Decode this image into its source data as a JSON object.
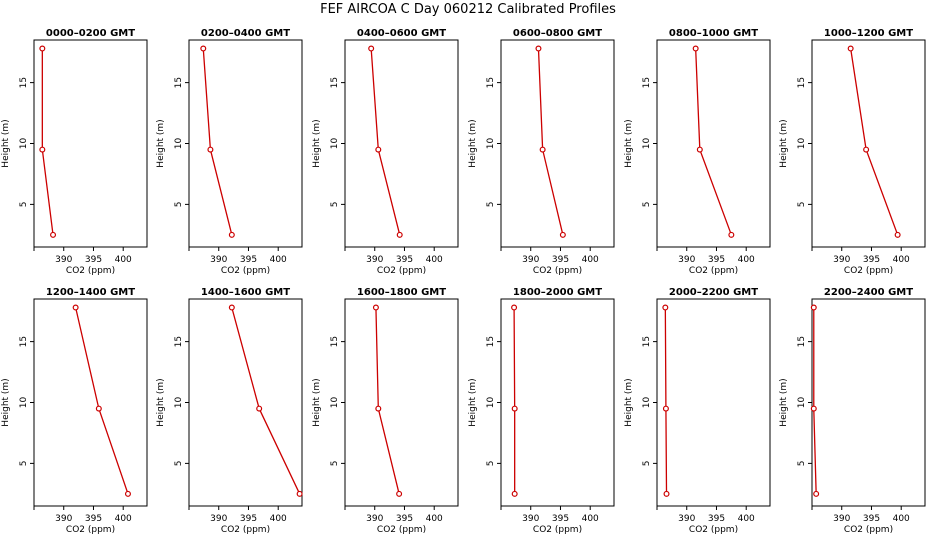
{
  "figure": {
    "title": "FEF AIRCOA C  Day 060212  Calibrated Profiles"
  },
  "chart_data": {
    "type": "line",
    "xlabel": "CO2 (ppm)",
    "ylabel": "Height (m)",
    "xlim": [
      385,
      404
    ],
    "ylim": [
      1.5,
      18.5
    ],
    "xticks": [
      390,
      395,
      400
    ],
    "yticks": [
      5,
      10,
      15
    ],
    "line_color": "#cc0000",
    "panels": [
      {
        "title": "0000–0200 GMT",
        "points": [
          [
            386.4,
            17.8
          ],
          [
            386.4,
            9.5
          ],
          [
            388.2,
            2.5
          ]
        ]
      },
      {
        "title": "0200–0400 GMT",
        "points": [
          [
            387.4,
            17.8
          ],
          [
            388.6,
            9.5
          ],
          [
            392.2,
            2.5
          ]
        ]
      },
      {
        "title": "0400–0600 GMT",
        "points": [
          [
            389.4,
            17.8
          ],
          [
            390.6,
            9.5
          ],
          [
            394.2,
            2.5
          ]
        ]
      },
      {
        "title": "0600–0800 GMT",
        "points": [
          [
            391.3,
            17.8
          ],
          [
            392.0,
            9.5
          ],
          [
            395.4,
            2.5
          ]
        ]
      },
      {
        "title": "0800–1000 GMT",
        "points": [
          [
            391.5,
            17.8
          ],
          [
            392.2,
            9.5
          ],
          [
            397.5,
            2.5
          ]
        ]
      },
      {
        "title": "1000–1200 GMT",
        "points": [
          [
            391.5,
            17.8
          ],
          [
            394.1,
            9.5
          ],
          [
            399.4,
            2.5
          ]
        ]
      },
      {
        "title": "1200–1400 GMT",
        "points": [
          [
            392.0,
            17.8
          ],
          [
            395.9,
            9.5
          ],
          [
            400.8,
            2.5
          ]
        ]
      },
      {
        "title": "1400–1600 GMT",
        "points": [
          [
            392.2,
            17.8
          ],
          [
            396.8,
            9.5
          ],
          [
            403.6,
            2.5
          ]
        ]
      },
      {
        "title": "1600–1800 GMT",
        "points": [
          [
            390.2,
            17.8
          ],
          [
            390.6,
            9.5
          ],
          [
            394.1,
            2.5
          ]
        ]
      },
      {
        "title": "1800–2000 GMT",
        "points": [
          [
            387.2,
            17.8
          ],
          [
            387.3,
            9.5
          ],
          [
            387.3,
            2.5
          ]
        ]
      },
      {
        "title": "2000–2200 GMT",
        "points": [
          [
            386.4,
            17.8
          ],
          [
            386.5,
            9.5
          ],
          [
            386.6,
            2.5
          ]
        ]
      },
      {
        "title": "2200–2400 GMT",
        "points": [
          [
            385.3,
            17.8
          ],
          [
            385.3,
            9.5
          ],
          [
            385.7,
            2.5
          ]
        ]
      }
    ]
  }
}
